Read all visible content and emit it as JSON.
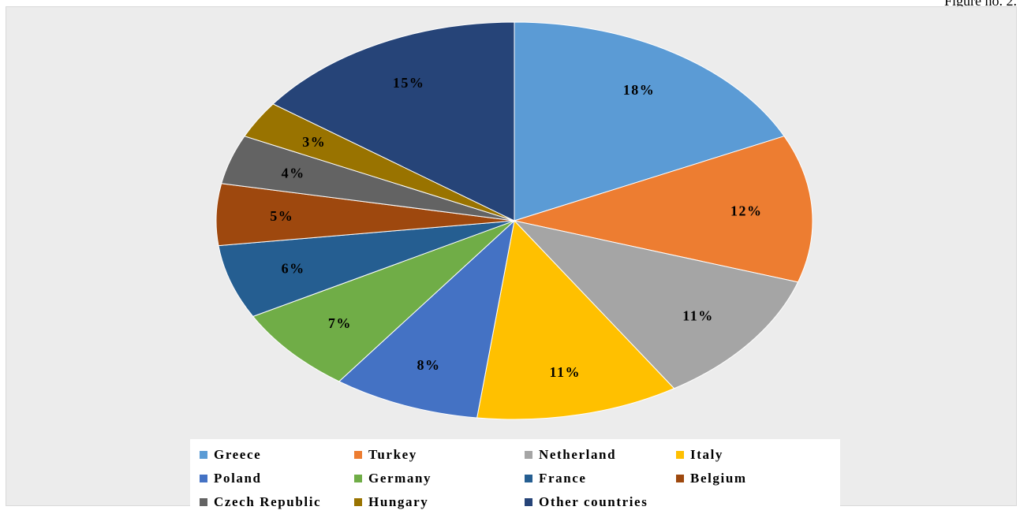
{
  "figure_label": "Figure no. 2.",
  "chart_data": {
    "type": "pie",
    "categories": [
      "Greece",
      "Turkey",
      "Netherland",
      "Italy",
      "Poland",
      "Germany",
      "France",
      "Belgium",
      "Czech Republic",
      "Hungary",
      "Other countries"
    ],
    "values": [
      18,
      12,
      11,
      11,
      8,
      7,
      6,
      5,
      4,
      3,
      15
    ],
    "data_labels": [
      "18%",
      "12%",
      "11%",
      "11%",
      "8%",
      "7%",
      "6%",
      "5%",
      "4%",
      "3%",
      "15%"
    ],
    "colors": [
      "#5b9bd5",
      "#ed7d31",
      "#a5a5a5",
      "#ffc000",
      "#4472c4",
      "#70ad47",
      "#255e91",
      "#9e480e",
      "#636363",
      "#997300",
      "#264478"
    ],
    "legend_position": "bottom"
  }
}
